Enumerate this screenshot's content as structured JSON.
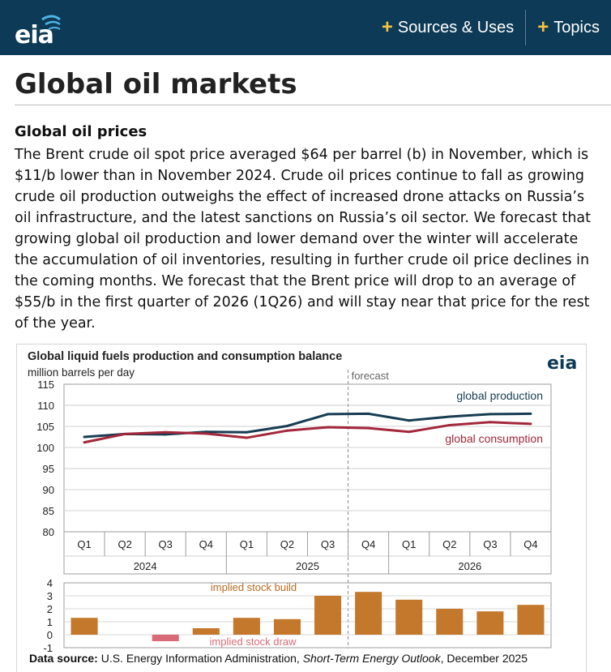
{
  "header": {
    "logo_text": "eia",
    "nav": [
      {
        "icon": "plus-icon",
        "label": "Sources & Uses"
      },
      {
        "icon": "plus-icon",
        "label": "Topics"
      }
    ],
    "colors": {
      "bar": "#0d3a56",
      "plus": "#f5c242"
    }
  },
  "page": {
    "title": "Global oil markets",
    "section_title": "Global oil prices",
    "body": "The Brent crude oil spot price averaged $64 per barrel (b) in November, which is $11/b lower than in November 2024. Crude oil prices continue to fall as growing crude oil production outweighs the effect of increased drone attacks on Russia’s oil infrastructure, and the latest sanctions on Russia’s oil sector. We forecast that growing global oil production and lower demand over the winter will accelerate the accumulation of oil inventories, resulting in further crude oil price declines in the coming months. We forecast that the Brent price will drop to an average of $55/b in the first quarter of 2026 (1Q26) and will stay near that price for the rest of the year."
  },
  "chart": {
    "logo_text": "eia",
    "source_label": "Data source:",
    "source_text": " U.S. Energy Information Administration, ",
    "source_pub": "Short-Term Energy Outlook",
    "source_date": ", December 2025"
  },
  "chart_data": [
    {
      "type": "line",
      "title": "Global liquid fuels production and consumption balance",
      "ylabel": "million barrels per day",
      "ylim": [
        80,
        115
      ],
      "yticks": [
        80,
        85,
        90,
        95,
        100,
        105,
        110,
        115
      ],
      "grid": true,
      "categories": [
        "Q1",
        "Q2",
        "Q3",
        "Q4",
        "Q1",
        "Q2",
        "Q3",
        "Q4",
        "Q1",
        "Q2",
        "Q3",
        "Q4"
      ],
      "years": [
        {
          "label": "2024",
          "quarters": 4
        },
        {
          "label": "2025",
          "quarters": 4
        },
        {
          "label": "2026",
          "quarters": 4
        }
      ],
      "forecast_label": "forecast",
      "forecast_start_index": 7,
      "series": [
        {
          "name": "global production",
          "color": "#173c52",
          "values": [
            102.5,
            103.2,
            103.1,
            103.7,
            103.6,
            105.1,
            107.9,
            108.0,
            106.4,
            107.3,
            107.9,
            108.0
          ]
        },
        {
          "name": "global consumption",
          "color": "#a3263a",
          "values": [
            101.2,
            103.2,
            103.6,
            103.3,
            102.3,
            104.0,
            104.8,
            104.6,
            103.7,
            105.3,
            106.0,
            105.6
          ]
        }
      ]
    },
    {
      "type": "bar",
      "categories": [
        "Q1",
        "Q2",
        "Q3",
        "Q4",
        "Q1",
        "Q2",
        "Q3",
        "Q4",
        "Q1",
        "Q2",
        "Q3",
        "Q4"
      ],
      "ylim": [
        -1,
        4
      ],
      "yticks": [
        -1,
        0,
        1,
        2,
        3,
        4
      ],
      "values": [
        1.3,
        0.0,
        -0.5,
        0.5,
        1.3,
        1.2,
        3.0,
        3.3,
        2.7,
        2.0,
        1.8,
        2.3
      ],
      "colors": {
        "build": "#c4782b",
        "draw": "#d96b78"
      },
      "annotations": [
        "implied stock build",
        "implied stock draw"
      ]
    }
  ]
}
